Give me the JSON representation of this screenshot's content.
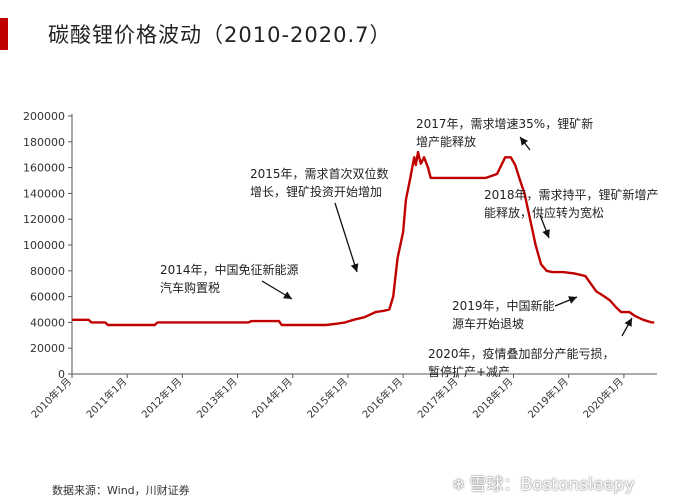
{
  "page": {
    "title": "碳酸锂价格波动（2010-2020.7）",
    "source": "数据来源：Wind，川财证券",
    "watermark_icon": "snowball-icon",
    "watermark": "雪球：Bostonsleepy"
  },
  "colors": {
    "line": "#c00000",
    "accent": "#c00000",
    "text": "#222222",
    "axis": "#555555"
  },
  "chart_data": {
    "type": "line",
    "title": "碳酸锂价格波动（2010-2020.7）",
    "xlabel": "",
    "ylabel": "",
    "ylim": [
      0,
      200000
    ],
    "yticks": [
      0,
      20000,
      40000,
      60000,
      80000,
      100000,
      120000,
      140000,
      160000,
      180000,
      200000
    ],
    "xlim": [
      2010.0,
      2020.6
    ],
    "xticks": [
      {
        "x": 2010,
        "label": "2010年1月"
      },
      {
        "x": 2011,
        "label": "2011年1月"
      },
      {
        "x": 2012,
        "label": "2012年1月"
      },
      {
        "x": 2013,
        "label": "2013年1月"
      },
      {
        "x": 2014,
        "label": "2014年1月"
      },
      {
        "x": 2015,
        "label": "2015年1月"
      },
      {
        "x": 2016,
        "label": "2016年1月"
      },
      {
        "x": 2017,
        "label": "2017年1月"
      },
      {
        "x": 2018,
        "label": "2018年1月"
      },
      {
        "x": 2019,
        "label": "2019年1月"
      },
      {
        "x": 2020,
        "label": "2020年1月"
      }
    ],
    "grid": false,
    "series": [
      {
        "points": [
          [
            2010.0,
            42000
          ],
          [
            2010.3,
            42000
          ],
          [
            2010.35,
            40000
          ],
          [
            2010.6,
            40000
          ],
          [
            2010.65,
            38000
          ],
          [
            2011.5,
            38000
          ],
          [
            2011.55,
            40000
          ],
          [
            2013.2,
            40000
          ],
          [
            2013.25,
            41000
          ],
          [
            2013.75,
            41000
          ],
          [
            2013.8,
            38000
          ],
          [
            2014.6,
            38000
          ],
          [
            2014.8,
            39000
          ],
          [
            2014.95,
            40000
          ],
          [
            2015.1,
            42000
          ],
          [
            2015.3,
            44000
          ],
          [
            2015.5,
            48000
          ],
          [
            2015.65,
            49000
          ],
          [
            2015.75,
            50000
          ],
          [
            2015.82,
            60000
          ],
          [
            2015.9,
            90000
          ],
          [
            2016.0,
            110000
          ],
          [
            2016.05,
            135000
          ],
          [
            2016.12,
            150000
          ],
          [
            2016.2,
            168000
          ],
          [
            2016.23,
            162000
          ],
          [
            2016.27,
            172000
          ],
          [
            2016.32,
            163000
          ],
          [
            2016.38,
            168000
          ],
          [
            2016.45,
            160000
          ],
          [
            2016.5,
            152000
          ],
          [
            2017.1,
            152000
          ],
          [
            2017.5,
            152000
          ],
          [
            2017.7,
            155000
          ],
          [
            2017.85,
            168000
          ],
          [
            2017.95,
            168000
          ],
          [
            2018.03,
            162000
          ],
          [
            2018.12,
            150000
          ],
          [
            2018.2,
            140000
          ],
          [
            2018.3,
            120000
          ],
          [
            2018.4,
            100000
          ],
          [
            2018.5,
            85000
          ],
          [
            2018.6,
            80000
          ],
          [
            2018.7,
            79000
          ],
          [
            2018.9,
            79000
          ],
          [
            2019.1,
            78000
          ],
          [
            2019.3,
            76000
          ],
          [
            2019.4,
            70000
          ],
          [
            2019.5,
            64000
          ],
          [
            2019.65,
            60000
          ],
          [
            2019.75,
            57000
          ],
          [
            2019.85,
            52000
          ],
          [
            2019.95,
            48000
          ],
          [
            2020.1,
            48000
          ],
          [
            2020.2,
            45000
          ],
          [
            2020.35,
            42000
          ],
          [
            2020.5,
            40000
          ],
          [
            2020.55,
            40000
          ]
        ]
      }
    ],
    "annotations": [
      {
        "lines": [
          "2014年，中国免征新能源",
          "汽车购置税"
        ]
      },
      {
        "lines": [
          "2015年，需求首次双位数",
          "增长，锂矿投资开始增加"
        ]
      },
      {
        "lines": [
          "2017年，需求增速35%，锂矿新",
          "增产能释放"
        ]
      },
      {
        "lines": [
          "2018年，需求持平，锂矿新增产",
          "能释放，供应转为宽松"
        ]
      },
      {
        "lines": [
          "2019年，中国新能",
          "源车开始退坡"
        ]
      },
      {
        "lines": [
          "2020年，疫情叠加部分产能亏损，",
          "暂停扩产+减产"
        ]
      }
    ]
  }
}
